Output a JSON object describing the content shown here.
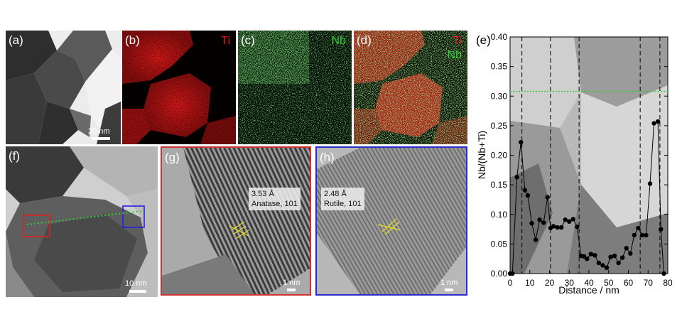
{
  "panels": {
    "a": {
      "label": "(a)",
      "scale": "20 nm"
    },
    "b": {
      "label": "(b)",
      "element": "Ti"
    },
    "c": {
      "label": "(c)",
      "element": "Nb"
    },
    "d": {
      "label": "(d)",
      "element1": "Ti",
      "element2": "Nb"
    },
    "e": {
      "label": "(e)"
    },
    "f": {
      "label": "(f)",
      "scale": "10 nm"
    },
    "g": {
      "label": "(g)",
      "d_spacing": "3.53 Å",
      "phase": "Anatase, 101",
      "scale": "1 nm"
    },
    "h": {
      "label": "(h)",
      "d_spacing": "2.48 Å",
      "phase": "Rutile, 101",
      "scale": "1 nm"
    }
  },
  "colors": {
    "ti": "#e8141a",
    "nb": "#33cc33",
    "frame_g": "#d03030",
    "frame_h": "#2a2ad0",
    "reference": "#33cc33"
  },
  "chart_data": {
    "type": "line",
    "xlabel": "Distance / nm",
    "ylabel": "Nb/(Nb+Ti)",
    "xlim": [
      0,
      80
    ],
    "ylim": [
      0,
      0.4
    ],
    "xticks": [
      0,
      10,
      20,
      30,
      40,
      50,
      60,
      70,
      80
    ],
    "yticks": [
      0.0,
      0.05,
      0.1,
      0.15,
      0.2,
      0.25,
      0.3,
      0.35,
      0.4
    ],
    "ytick_labels": [
      "0.00",
      "0.05",
      "0.10",
      "0.15",
      "0.20",
      "0.25",
      "0.30",
      "0.35",
      "0.40"
    ],
    "reference_line": 0.308,
    "boundaries": [
      6,
      20.5,
      35,
      66,
      76
    ],
    "series": [
      {
        "x": [
          0,
          1.2,
          3.5,
          5.5,
          7.5,
          9,
          11,
          13,
          15,
          17,
          19,
          20.5,
          22,
          24,
          26,
          28,
          30,
          32,
          34,
          36,
          37.5,
          39,
          41,
          43,
          45,
          47,
          49,
          51,
          53,
          55,
          57,
          59,
          61,
          63,
          65,
          67,
          69,
          71,
          73,
          75,
          76.5,
          78
        ],
        "y": [
          0.0,
          0.0,
          0.163,
          0.222,
          0.141,
          0.132,
          0.085,
          0.057,
          0.091,
          0.086,
          0.129,
          0.077,
          0.08,
          0.078,
          0.078,
          0.091,
          0.088,
          0.092,
          0.079,
          0.03,
          0.029,
          0.025,
          0.033,
          0.031,
          0.018,
          0.014,
          0.01,
          0.028,
          0.03,
          0.018,
          0.027,
          0.043,
          0.034,
          0.065,
          0.077,
          0.065,
          0.065,
          0.152,
          0.254,
          0.257,
          0.075,
          0.0
        ]
      }
    ]
  }
}
